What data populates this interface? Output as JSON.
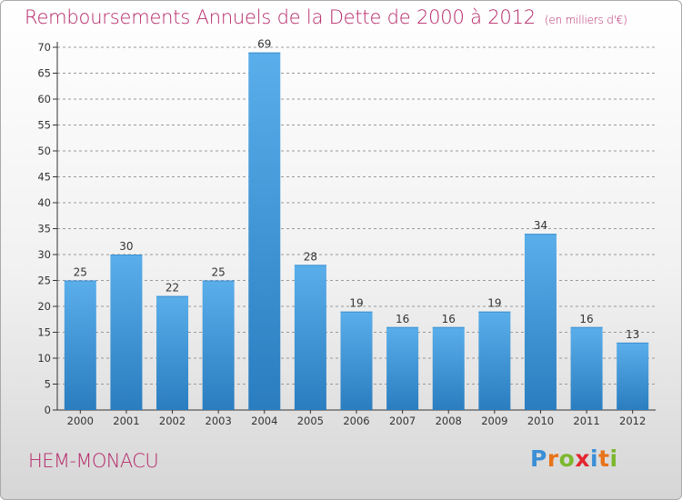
{
  "header": {
    "title": "Remboursements Annuels de la Dette de 2000 à 2012",
    "unit": "(en milliers d'€)"
  },
  "footer": {
    "commune": "HEM-MONACU",
    "logo_text": "Proxiti",
    "logo_letters": [
      {
        "ch": "P",
        "color": "#3a8fd6"
      },
      {
        "ch": "r",
        "color": "#e8731a"
      },
      {
        "ch": "o",
        "color": "#7cb82f"
      },
      {
        "ch": "x",
        "color": "#e3262f"
      },
      {
        "ch": "i",
        "color": "#3a8fd6"
      },
      {
        "ch": "t",
        "color": "#e8731a"
      },
      {
        "ch": "i",
        "color": "#7cb82f"
      }
    ]
  },
  "colors": {
    "title": "#b6296a",
    "bar_top": "#5aaeea",
    "bar_bottom": "#2a7dbf",
    "grid": "#9a9a9a"
  },
  "chart_data": {
    "type": "bar",
    "title": "Remboursements Annuels de la Dette de 2000 à 2012",
    "subtitle": "(en milliers d'€)",
    "categories": [
      "2000",
      "2001",
      "2002",
      "2003",
      "2004",
      "2005",
      "2006",
      "2007",
      "2008",
      "2009",
      "2010",
      "2011",
      "2012"
    ],
    "values": [
      25,
      30,
      22,
      25,
      69,
      28,
      19,
      16,
      16,
      19,
      34,
      16,
      13
    ],
    "ylim": [
      0,
      70
    ],
    "yticks": [
      0,
      5,
      10,
      15,
      20,
      25,
      30,
      35,
      40,
      45,
      50,
      55,
      60,
      65,
      70
    ],
    "grid": true,
    "grid_style": "dashed",
    "data_labels": true
  }
}
